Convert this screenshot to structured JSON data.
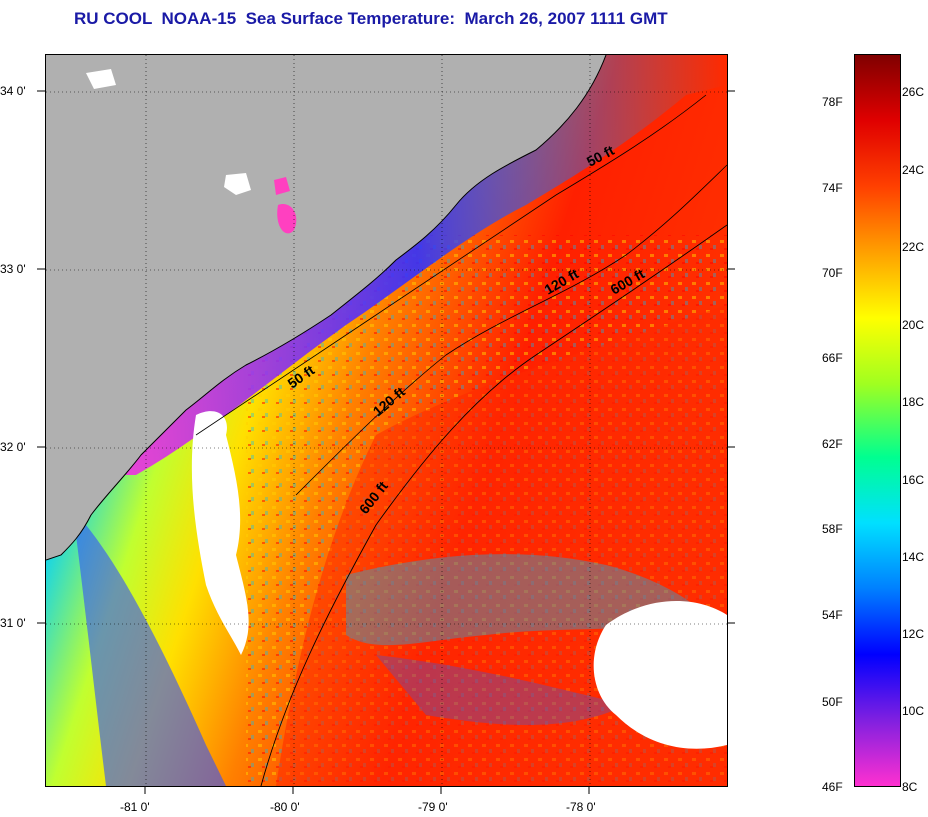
{
  "title": "RU COOL  NOAA-15  Sea Surface Temperature:  March 26, 2007 1111 GMT",
  "map": {
    "lat_labels": [
      "34 0'",
      "33 0'",
      "32 0'",
      "31 0'"
    ],
    "lon_labels": [
      "-81 0'",
      "-80 0'",
      "-79 0'",
      "-78 0'"
    ],
    "isobath_labels": [
      {
        "text": "50 ft"
      },
      {
        "text": "50 ft"
      },
      {
        "text": "120 ft"
      },
      {
        "text": "120 ft"
      },
      {
        "text": "600 ft"
      },
      {
        "text": "600 ft"
      }
    ],
    "colors": {
      "land": "#b0b0b0",
      "cloud": "#ffffff",
      "coastline": "#000000"
    }
  },
  "colorbar": {
    "fahrenheit_labels": [
      "78F",
      "74F",
      "70F",
      "66F",
      "62F",
      "58F",
      "54F",
      "50F",
      "46F"
    ],
    "celsius_labels": [
      "26C",
      "24C",
      "22C",
      "20C",
      "18C",
      "16C",
      "14C",
      "12C",
      "10C",
      "8C"
    ],
    "colors_bottom_to_top": [
      "#ff30d0",
      "#8020e0",
      "#0000ff",
      "#0080ff",
      "#00e0ff",
      "#00ff90",
      "#a0ff20",
      "#ffff00",
      "#ffa000",
      "#ff4000",
      "#e00000",
      "#800000"
    ]
  }
}
